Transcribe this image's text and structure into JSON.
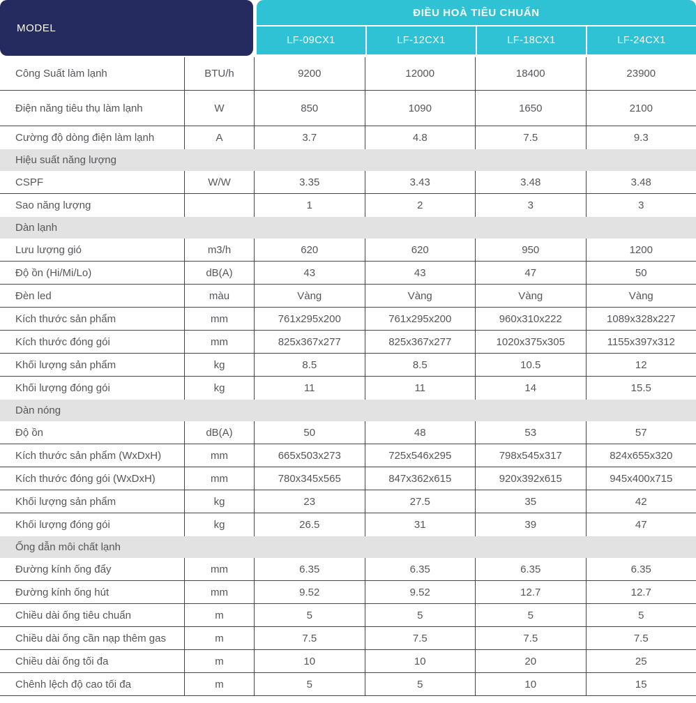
{
  "header": {
    "model_label": "MODEL",
    "group_title": "ĐIỀU HOÀ TIÊU CHUẨN",
    "models": [
      "LF-09CX1",
      "LF-12CX1",
      "LF-18CX1",
      "LF-24CX1"
    ]
  },
  "colors": {
    "navy": "#262b5f",
    "cyan": "#2fc2d4",
    "band": "#e2e2e2",
    "text": "#55565a",
    "line": "#454545"
  },
  "rows": [
    {
      "type": "data",
      "label": "Công Suất làm lạnh",
      "unit": "BTU/h",
      "values": [
        "9200",
        "12000",
        "18400",
        "23900"
      ],
      "tall": 48
    },
    {
      "type": "data",
      "label": "Điện năng tiêu thụ làm lạnh",
      "unit": "W",
      "values": [
        "850",
        "1090",
        "1650",
        "2100"
      ],
      "tall": 51
    },
    {
      "type": "data",
      "label": "Cường độ dòng điện làm lạnh",
      "unit": "A",
      "values": [
        "3.7",
        "4.8",
        "7.5",
        "9.3"
      ]
    },
    {
      "type": "section",
      "label": "Hiệu suất năng lượng"
    },
    {
      "type": "data",
      "label": "CSPF",
      "unit": "W/W",
      "values": [
        "3.35",
        "3.43",
        "3.48",
        "3.48"
      ]
    },
    {
      "type": "data",
      "label": "Sao năng lượng",
      "unit": "",
      "values": [
        "1",
        "2",
        "3",
        "3"
      ]
    },
    {
      "type": "section",
      "label": "Dàn lạnh"
    },
    {
      "type": "data",
      "label": "Lưu lượng gió",
      "unit": "m3/h",
      "values": [
        "620",
        "620",
        "950",
        "1200"
      ]
    },
    {
      "type": "data",
      "label": "Độ ồn (Hi/Mi/Lo)",
      "unit": "dB(A)",
      "values": [
        "43",
        "43",
        "47",
        "50"
      ]
    },
    {
      "type": "data",
      "label": "Đèn led",
      "unit": "màu",
      "values": [
        "Vàng",
        "Vàng",
        "Vàng",
        "Vàng"
      ]
    },
    {
      "type": "data",
      "label": "Kích thước sản phẩm",
      "unit": "mm",
      "values": [
        "761x295x200",
        "761x295x200",
        "960x310x222",
        "1089x328x227"
      ]
    },
    {
      "type": "data",
      "label": "Kích thước đóng gói",
      "unit": "mm",
      "values": [
        "825x367x277",
        "825x367x277",
        "1020x375x305",
        "1155x397x312"
      ]
    },
    {
      "type": "data",
      "label": "Khối lượng sản phẩm",
      "unit": "kg",
      "values": [
        "8.5",
        "8.5",
        "10.5",
        "12"
      ]
    },
    {
      "type": "data",
      "label": "Khối lượng đóng gói",
      "unit": "kg",
      "values": [
        "11",
        "11",
        "14",
        "15.5"
      ]
    },
    {
      "type": "section",
      "label": "Dàn nóng"
    },
    {
      "type": "data",
      "label": "Độ ồn",
      "unit": "dB(A)",
      "values": [
        "50",
        "48",
        "53",
        "57"
      ]
    },
    {
      "type": "data",
      "label": "Kích thước sản phẩm (WxDxH)",
      "unit": "mm",
      "values": [
        "665x503x273",
        "725x546x295",
        "798x545x317",
        "824x655x320"
      ]
    },
    {
      "type": "data",
      "label": "Kích thước đóng gói (WxDxH)",
      "unit": "mm",
      "values": [
        "780x345x565",
        "847x362x615",
        "920x392x615",
        "945x400x715"
      ]
    },
    {
      "type": "data",
      "label": "Khối lượng sản phẩm",
      "unit": "kg",
      "values": [
        "23",
        "27.5",
        "35",
        "42"
      ]
    },
    {
      "type": "data",
      "label": "Khối lượng đóng gói",
      "unit": "kg",
      "values": [
        "26.5",
        "31",
        "39",
        "47"
      ]
    },
    {
      "type": "section",
      "label": "Ống dẫn môi chất lạnh"
    },
    {
      "type": "data",
      "label": "Đường kính ống đẩy",
      "unit": "mm",
      "values": [
        "6.35",
        "6.35",
        "6.35",
        "6.35"
      ]
    },
    {
      "type": "data",
      "label": "Đường kính ống hút",
      "unit": "mm",
      "values": [
        "9.52",
        "9.52",
        "12.7",
        "12.7"
      ]
    },
    {
      "type": "data",
      "label": "Chiều dài ống tiêu chuẩn",
      "unit": "m",
      "values": [
        "5",
        "5",
        "5",
        "5"
      ]
    },
    {
      "type": "data",
      "label": "Chiều dài ống cần nạp thêm gas",
      "unit": "m",
      "values": [
        "7.5",
        "7.5",
        "7.5",
        "7.5"
      ]
    },
    {
      "type": "data",
      "label": "Chiều dài ống tối đa",
      "unit": "m",
      "values": [
        "10",
        "10",
        "20",
        "25"
      ]
    },
    {
      "type": "data",
      "label": "Chênh lệch độ cao tối đa",
      "unit": "m",
      "values": [
        "5",
        "5",
        "10",
        "15"
      ]
    }
  ]
}
